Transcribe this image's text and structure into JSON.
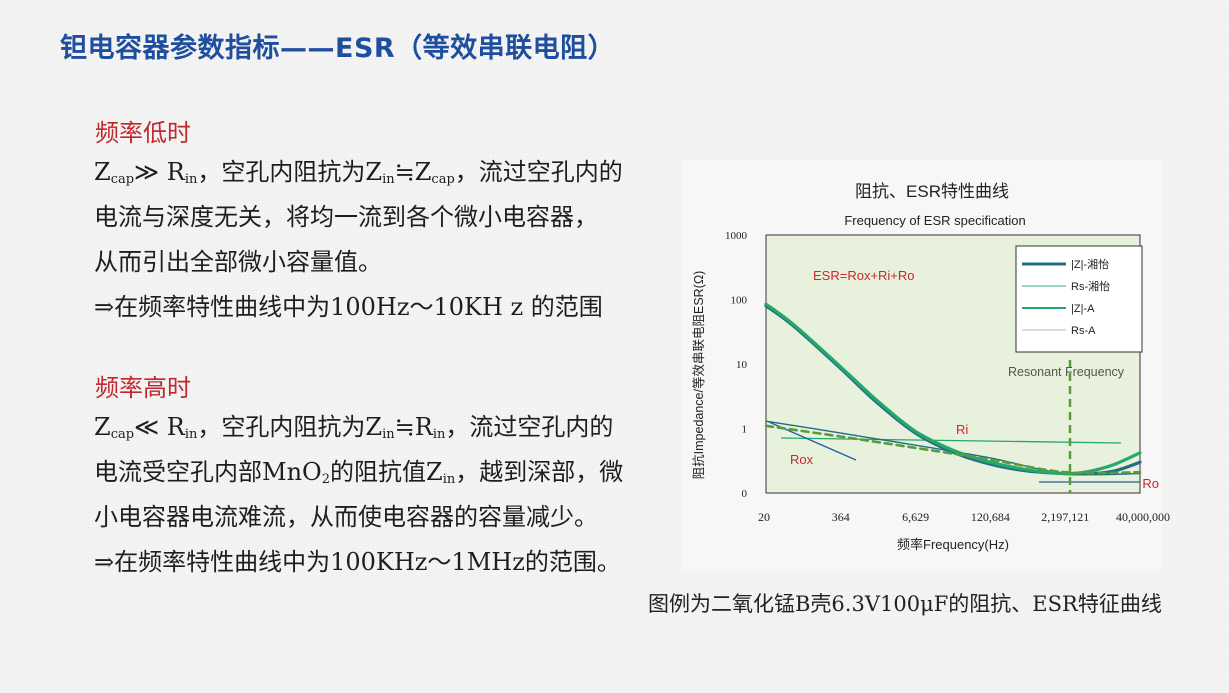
{
  "slide": {
    "title": "钽电容器参数指标——ESR（等效串联电阻）",
    "low_freq": {
      "heading": "频率低时",
      "line1": {
        "z": "Z",
        "cap": "cap",
        "op": "≫ R",
        "in": "in",
        "rest": "，空孔内阻抗为Z",
        "in2": "in",
        "approx": "≒Z",
        "cap2": "cap",
        "tail": "，流过空孔内的"
      },
      "line2": "电流与深度无关，将均一流到各个微小电容器，",
      "line3": "从而引出全部微小容量值。",
      "line4": "⇒在频率特性曲线中为100Hz～10KH z 的范围"
    },
    "high_freq": {
      "heading": "频率高时",
      "line1": {
        "z": "Z",
        "cap": "cap",
        "op": "≪ R",
        "in": "in",
        "rest": "，空孔内阻抗为Z",
        "in2": "in",
        "approx": "≒R",
        "in3": "in",
        "tail": "，流过空孔内的"
      },
      "line2": {
        "a": "电流受空孔内部MnO",
        "sub": "2",
        "b": "的阻抗值Z",
        "sub2": "in",
        "c": "，越到深部，微"
      },
      "line3": "小电容器电流难流，从而使电容器的容量减少。",
      "line4": "⇒在频率特性曲线中为100KHz～1MHz的范围。"
    },
    "caption": "图例为二氧化锰B壳6.3V100μF的阻抗、ESR特征曲线"
  },
  "chart_data": {
    "type": "line",
    "title": "阻抗、ESR特性曲线",
    "subtitle": "Frequency of ESR specification",
    "xlabel": "频率Frequency(Hz)",
    "ylabel": "阻抗Impedance/等效串联电阻ESR(Ω)",
    "x_scale": "log",
    "y_scale": "log",
    "x_ticks": [
      "20",
      "364",
      "6,629",
      "120,684",
      "2,197,121",
      "40,000,000"
    ],
    "y_ticks": [
      "1000",
      "100",
      "10",
      "1",
      "0"
    ],
    "grid": false,
    "legend_position": "top-right",
    "colors": {
      "background": "#e8f1dc",
      "dark_teal": "#1f6e86",
      "green": "#25a86a",
      "light_green": "#5cc08a",
      "dashed": "#5b9a3c",
      "label_red": "#d0262a"
    },
    "series": [
      {
        "name": "|Z|-湘怡",
        "style": "solid-thick",
        "color": "#1f6e86",
        "x": [
          20,
          60,
          364,
          1500,
          6629,
          30000,
          120684,
          500000,
          2197121,
          6000000,
          15000000,
          40000000
        ],
        "y": [
          80,
          38,
          8.5,
          2.5,
          0.85,
          0.42,
          0.28,
          0.22,
          0.2,
          0.2,
          0.22,
          0.3
        ]
      },
      {
        "name": "Rs-湘怡",
        "style": "solid-thin",
        "color": "#1f6e86",
        "x": [
          20,
          364,
          6629,
          120684,
          2197121,
          40000000
        ],
        "y": [
          1.3,
          0.85,
          0.55,
          0.35,
          0.2,
          0.2
        ]
      },
      {
        "name": "|Z|-A",
        "style": "solid-thick",
        "color": "#25a86a",
        "x": [
          20,
          60,
          364,
          1500,
          6629,
          30000,
          120684,
          500000,
          2197121,
          6000000,
          15000000,
          40000000
        ],
        "y": [
          85,
          40,
          9,
          2.7,
          0.9,
          0.45,
          0.3,
          0.23,
          0.2,
          0.22,
          0.28,
          0.42
        ]
      },
      {
        "name": "Rs-A",
        "style": "dashed",
        "color": "#5b9a3c",
        "x": [
          20,
          364,
          6629,
          120684,
          2197121,
          40000000
        ],
        "y": [
          1.1,
          0.75,
          0.5,
          0.33,
          0.21,
          0.21
        ]
      }
    ],
    "annotations": [
      {
        "text": "ESR=Rox+Ri+Ro",
        "color": "#d0262a"
      },
      {
        "text": "Ri",
        "color": "#d0262a",
        "value": 0.7
      },
      {
        "text": "Rox",
        "color": "#d0262a"
      },
      {
        "text": "Ro",
        "color": "#d0262a",
        "value": 0.19
      },
      {
        "text": "Resonant Frequency",
        "color": "#555555",
        "x": 2197121
      }
    ]
  }
}
